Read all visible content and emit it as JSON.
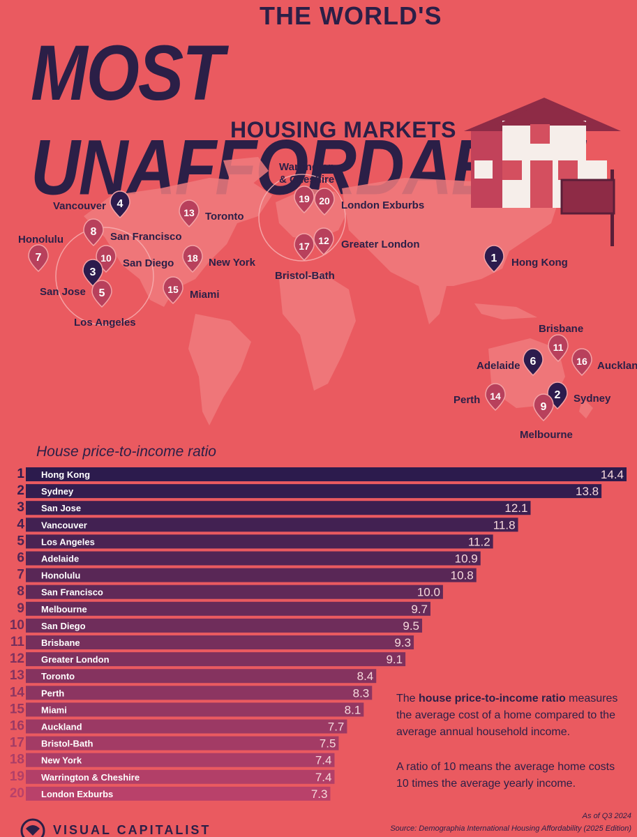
{
  "header": {
    "title_top": "THE WORLD'S",
    "title_main": "MOST UNAFFORDABLE",
    "title_sub": "HOUSING MARKETS"
  },
  "map": {
    "labels": {
      "vancouver": "Vancouver",
      "san_francisco": "San Francisco",
      "honolulu": "Honolulu",
      "san_diego": "San Diego",
      "san_jose": "San Jose",
      "los_angeles": "Los Angeles",
      "toronto": "Toronto",
      "new_york": "New York",
      "miami": "Miami",
      "warrington": "Warrington\n& Cheshire",
      "london_exburbs": "London Exburbs",
      "greater_london": "Greater London",
      "bristol_bath": "Bristol-Bath",
      "hong_kong": "Hong Kong",
      "brisbane": "Brisbane",
      "adelaide": "Adelaide",
      "auckland": "Aucklan",
      "perth": "Perth",
      "sydney": "Sydney",
      "melbourne": "Melbourne"
    },
    "pins": [
      {
        "id": "vancouver",
        "rank": "4"
      },
      {
        "id": "san_francisco",
        "rank": "8"
      },
      {
        "id": "honolulu",
        "rank": "7"
      },
      {
        "id": "san_diego",
        "rank": "10"
      },
      {
        "id": "san_jose",
        "rank": "3"
      },
      {
        "id": "los_angeles",
        "rank": "5"
      },
      {
        "id": "toronto",
        "rank": "13"
      },
      {
        "id": "new_york",
        "rank": "18"
      },
      {
        "id": "miami",
        "rank": "15"
      },
      {
        "id": "warrington",
        "rank": "19"
      },
      {
        "id": "london_exburbs",
        "rank": "20"
      },
      {
        "id": "greater_london",
        "rank": "12"
      },
      {
        "id": "bristol_bath",
        "rank": "17"
      },
      {
        "id": "hong_kong",
        "rank": "1"
      },
      {
        "id": "brisbane",
        "rank": "11"
      },
      {
        "id": "adelaide",
        "rank": "6"
      },
      {
        "id": "auckland",
        "rank": "16"
      },
      {
        "id": "perth",
        "rank": "14"
      },
      {
        "id": "sydney",
        "rank": "2"
      },
      {
        "id": "melbourne",
        "rank": "9"
      }
    ]
  },
  "chart_data": {
    "type": "bar",
    "orientation": "horizontal",
    "title": "House price-to-income ratio",
    "ranks": [
      "1",
      "2",
      "3",
      "4",
      "5",
      "6",
      "7",
      "8",
      "9",
      "10",
      "11",
      "12",
      "13",
      "14",
      "15",
      "16",
      "17",
      "18",
      "19",
      "20"
    ],
    "categories": [
      "Hong Kong",
      "Sydney",
      "San Jose",
      "Vancouver",
      "Los Angeles",
      "Adelaide",
      "Honolulu",
      "San Francisco",
      "Melbourne",
      "San Diego",
      "Brisbane",
      "Greater London",
      "Toronto",
      "Perth",
      "Miami",
      "Auckland",
      "Bristol-Bath",
      "New York",
      "Warrington & Cheshire",
      "London Exburbs"
    ],
    "values": [
      14.4,
      13.8,
      12.1,
      11.8,
      11.2,
      10.9,
      10.8,
      10.0,
      9.7,
      9.5,
      9.3,
      9.1,
      8.4,
      8.3,
      8.1,
      7.7,
      7.5,
      7.4,
      7.4,
      7.3
    ],
    "value_labels": [
      "14.4",
      "13.8",
      "12.1",
      "11.8",
      "11.2",
      "10.9",
      "10.8",
      "10.0",
      "9.7",
      "9.5",
      "9.3",
      "9.1",
      "8.4",
      "8.3",
      "8.1",
      "7.7",
      "7.5",
      "7.4",
      "7.4",
      "7.3"
    ],
    "xlim": [
      0,
      14.4
    ],
    "colors": {
      "top": "#2c1b4d",
      "bottom": "#b9416a"
    }
  },
  "description": {
    "p1_pre": "The ",
    "p1_bold": "house price-to-income ratio",
    "p1_post": " measures the average cost of a home compared to the average annual household income.",
    "p2": "A ratio of 10 means the average home costs 10 times the average yearly income."
  },
  "footer": {
    "brand": "VISUAL CAPITALIST",
    "as_of": "As of Q3 2024",
    "source": "Source: Demographia International Housing Affordability (2025 Edition)"
  },
  "colors": {
    "background": "#ea5a60",
    "ink": "#2b1f47",
    "map_land": "#f07b7e"
  }
}
